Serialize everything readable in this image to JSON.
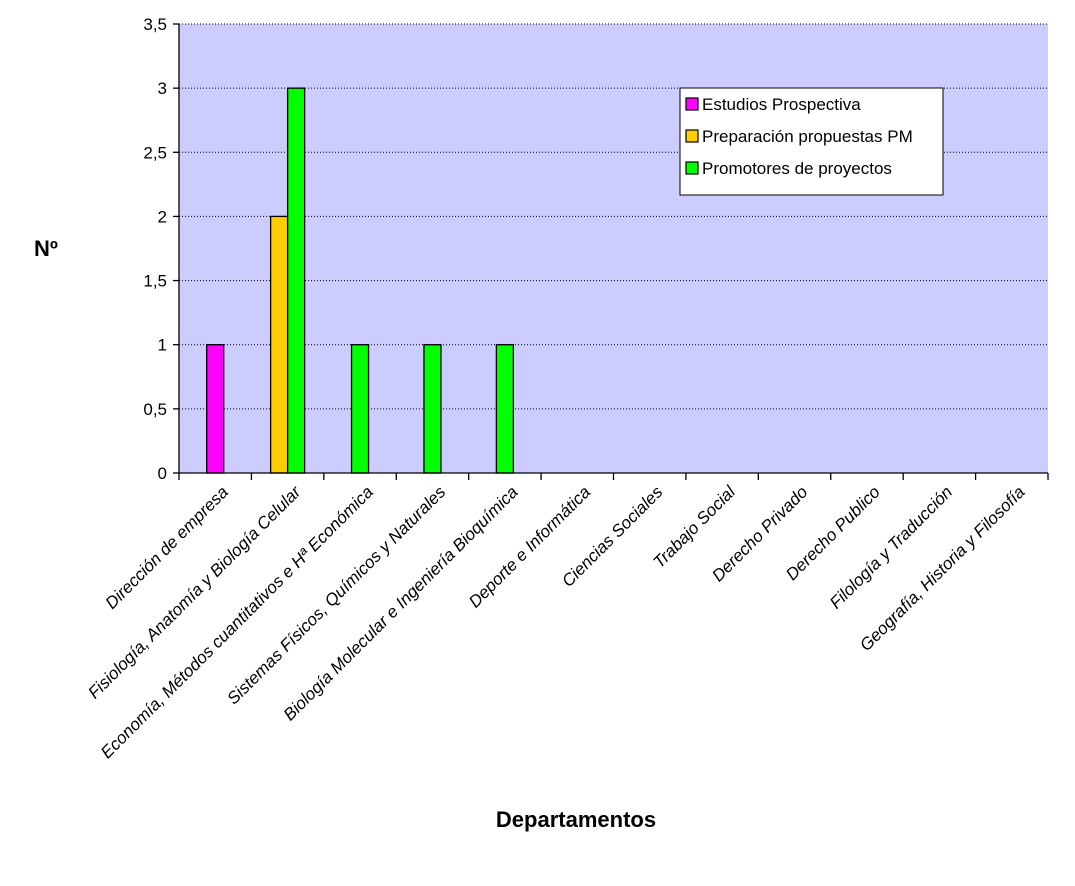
{
  "chart_data": {
    "type": "bar",
    "title": "",
    "xlabel": "Departamentos",
    "ylabel": "Nº",
    "ylim": [
      0,
      3.5
    ],
    "yticks": [
      "0",
      "0,5",
      "1",
      "1,5",
      "2",
      "2,5",
      "3",
      "3,5"
    ],
    "grid": true,
    "legend_position": "top-right",
    "plot_background": "#ccccff",
    "categories": [
      "Dirección de empresa",
      "Fisiología, Anatomía y Biología Celular",
      "Economía, Métodos cuantitativos e Hª Económica",
      "Sistemas Físicos, Químicos y Naturales",
      "Biología Molecular e Ingeniería Bioquímica",
      "Deporte e Informática",
      "Ciencias Sociales",
      "Trabajo Social",
      "Derecho Privado",
      "Derecho Publico",
      "Filología y Traducción",
      "Geografía, Historia y Filosofía"
    ],
    "series": [
      {
        "name": "Estudios Prospectiva",
        "color": "#ff00ff",
        "values": [
          1,
          0,
          0,
          0,
          0,
          0,
          0,
          0,
          0,
          0,
          0,
          0
        ]
      },
      {
        "name": "Preparación propuestas PM",
        "color": "#ffcc00",
        "values": [
          0,
          2,
          0,
          0,
          0,
          0,
          0,
          0,
          0,
          0,
          0,
          0
        ]
      },
      {
        "name": "Promotores de proyectos",
        "color": "#00ff00",
        "values": [
          0,
          3,
          1,
          1,
          1,
          0,
          0,
          0,
          0,
          0,
          0,
          0
        ]
      }
    ]
  }
}
